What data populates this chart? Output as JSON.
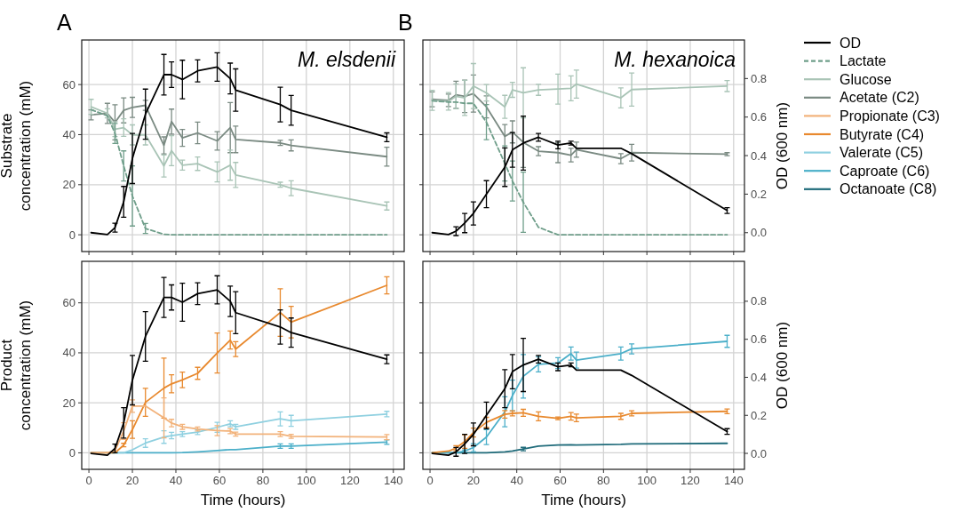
{
  "chart_data": [
    {
      "type": "line",
      "title": "A",
      "annotations": [
        "M. elsdenii"
      ],
      "ylabel": "Substrate concentration (mM)",
      "x": [
        1,
        8.5,
        12,
        16,
        20,
        26,
        34.5,
        38,
        43,
        50,
        59,
        65,
        67.5,
        88,
        93,
        137
      ],
      "xlim": [
        -3.3,
        145
      ],
      "xticks": [
        0,
        20,
        40,
        60,
        80,
        100,
        120,
        140
      ],
      "ylim": [
        -6.7,
        77.8
      ],
      "yticks": [
        0,
        20,
        40,
        60
      ],
      "y2lim": [
        -0.098,
        1.0
      ],
      "grid": true,
      "legend": "right",
      "tick_labels": "y",
      "series": [
        {
          "name": "OD",
          "color": "#000000",
          "axis": "y2",
          "values": [
            0.0,
            -0.01,
            0.026,
            0.16,
            0.385,
            0.615,
            0.82,
            0.82,
            0.795,
            0.84,
            0.86,
            0.8,
            0.74,
            0.665,
            0.635,
            0.495
          ],
          "errors": [
            null,
            null,
            0.023,
            0.08,
            0.13,
            0.13,
            0.105,
            0.066,
            0.1,
            0.057,
            0.074,
            0.08,
            0.11,
            0.09,
            0.077,
            0.023
          ]
        },
        {
          "name": "Lactate",
          "color": "#6f9e8a",
          "line_style": "dashed",
          "values": [
            50,
            47.5,
            40.5,
            27.5,
            15.5,
            2.5,
            0.2,
            0,
            0,
            0,
            0,
            0,
            0,
            0,
            0,
            0
          ],
          "errors": [
            null,
            null,
            4,
            6,
            12,
            2,
            null,
            null,
            null,
            null,
            null,
            null,
            null,
            null,
            null,
            null
          ]
        },
        {
          "name": "Glucose",
          "color": "#a9c4b6",
          "values": [
            51.1,
            48.5,
            42.2,
            42.8,
            39.9,
            39.9,
            27.5,
            33.6,
            27.8,
            28.4,
            25.1,
            27.8,
            23.9,
            20,
            18.6,
            11.5
          ],
          "errors": [
            3,
            1.8,
            3,
            3.5,
            4,
            4,
            4.4,
            6,
            2,
            2.7,
            4,
            6,
            5,
            1,
            3,
            1.6
          ]
        },
        {
          "name": "Acetate (C2)",
          "color": "#7a8a82",
          "values": [
            47.9,
            48.5,
            44.9,
            49.7,
            50.9,
            51.7,
            35.7,
            45.2,
            38.7,
            40.7,
            37.5,
            42.8,
            38.1,
            36.7,
            35.7,
            31.2
          ],
          "errors": [
            2,
            4,
            7,
            5,
            4,
            2,
            3.4,
            5,
            3.4,
            4.3,
            3.7,
            10,
            5.3,
            1,
            2.2,
            3.8
          ]
        }
      ]
    },
    {
      "type": "line",
      "title": "B",
      "annotations": [
        "M. hexanoica"
      ],
      "y2label": "OD (600 nm)",
      "x": [
        1,
        8.5,
        12,
        16,
        20,
        26,
        34.5,
        38,
        43,
        50,
        59,
        65,
        67.5,
        88,
        93,
        137
      ],
      "xlim": [
        -3.3,
        145
      ],
      "ylim": [
        -6.7,
        77.8
      ],
      "y2lim": [
        -0.098,
        1.0
      ],
      "y2ticks": [
        {
          "value": 0,
          "label": "0.0"
        },
        {
          "value": 0.2,
          "label": "0.2"
        },
        {
          "value": 0.4,
          "label": "0.4"
        },
        {
          "value": 0.6,
          "label": "0.6"
        },
        {
          "value": 0.8,
          "label": "0.8"
        }
      ],
      "grid": true,
      "tick_labels": "y2",
      "series": [
        {
          "color": "#000000",
          "axis": "y2",
          "values": [
            0.0,
            -0.01,
            0.008,
            0.05,
            0.1,
            0.2,
            0.34,
            0.43,
            0.465,
            0.495,
            0.455,
            0.465,
            0.438,
            0.438,
            0.41,
            0.115
          ],
          "errors": [
            null,
            null,
            0.023,
            0.05,
            0.06,
            0.07,
            0.1,
            0.09,
            0.14,
            0.02,
            0.02,
            0.01,
            null,
            null,
            null,
            0.015
          ]
        },
        {
          "color": "#6f9e8a",
          "line_style": "dashed",
          "values": [
            53.5,
            53,
            53,
            52.5,
            52.5,
            45,
            28.5,
            21.5,
            13,
            3,
            0,
            0,
            0,
            0,
            0,
            0
          ],
          "errors": [
            null,
            null,
            null,
            null,
            null,
            7,
            7,
            8,
            12,
            null,
            null,
            null,
            null,
            null,
            null,
            null
          ]
        },
        {
          "color": "#a9c4b6",
          "values": [
            53.7,
            53.3,
            55.3,
            54.7,
            59.4,
            56.7,
            51.1,
            57.9,
            56.7,
            57.9,
            58.2,
            58.5,
            60.2,
            54.7,
            58,
            59.4
          ],
          "errors": [
            4,
            3.5,
            5,
            7,
            9,
            3.3,
            4.6,
            3,
            10,
            2.2,
            6,
            5,
            5.6,
            4,
            6.6,
            2.2
          ]
        },
        {
          "color": "#7a8a82",
          "values": [
            54.1,
            53.7,
            55.9,
            55.3,
            56.4,
            51.1,
            39.3,
            41.1,
            36.9,
            33.4,
            32.8,
            31.8,
            34,
            30.4,
            32.8,
            32.2
          ],
          "errors": [
            3,
            2.5,
            5.4,
            6.5,
            7.4,
            4.4,
            4.7,
            4.4,
            10,
            1.8,
            4,
            2.7,
            3,
            2,
            3.3,
            0.6
          ]
        }
      ]
    },
    {
      "type": "line",
      "ylabel": "Product concentration (mM)",
      "xlabel": "Time (hours)",
      "x": [
        1,
        8.5,
        12,
        16,
        20,
        26,
        34.5,
        38,
        43,
        50,
        59,
        65,
        67.5,
        88,
        93,
        137
      ],
      "xlim": [
        -3.3,
        145
      ],
      "xticks": [
        0,
        20,
        40,
        60,
        80,
        100,
        120,
        140
      ],
      "ylim": [
        -6.6,
        76.6
      ],
      "yticks": [
        0,
        20,
        40,
        60
      ],
      "y2lim": [
        -0.084,
        1.01
      ],
      "grid": true,
      "legend": "right",
      "series": [
        {
          "name": "OD",
          "color": "#000000",
          "axis": "y2",
          "values": [
            0.0,
            -0.01,
            0.026,
            0.16,
            0.385,
            0.615,
            0.82,
            0.82,
            0.795,
            0.84,
            0.86,
            0.8,
            0.74,
            0.665,
            0.635,
            0.495
          ],
          "errors": [
            null,
            null,
            0.023,
            0.08,
            0.13,
            0.13,
            0.105,
            0.066,
            0.1,
            0.057,
            0.074,
            0.08,
            0.11,
            0.09,
            0.077,
            0.023
          ]
        },
        {
          "name": "Propionate (C3)",
          "color": "#f2b27a",
          "values": [
            0,
            0,
            0.9,
            8.7,
            18.7,
            18.7,
            14,
            11.9,
            10.4,
            9.5,
            8.9,
            8.7,
            7.5,
            7.5,
            6.6,
            6.3
          ],
          "errors": [
            null,
            null,
            null,
            3.3,
            2.5,
            null,
            8,
            1.5,
            1,
            0.8,
            2,
            1,
            0.8,
            1,
            0.8,
            1
          ]
        },
        {
          "name": "Butyrate (C4)",
          "color": "#e8892e",
          "values": [
            0,
            0,
            0,
            3.1,
            9.3,
            20.2,
            25.9,
            27.6,
            29.2,
            31.8,
            39.9,
            45.1,
            41.5,
            56.1,
            52.3,
            67
          ],
          "errors": [
            null,
            null,
            null,
            0.7,
            3.5,
            5.6,
            12,
            3.6,
            3.1,
            2.4,
            8,
            3.6,
            3,
            9.5,
            6.3,
            3.4
          ]
        },
        {
          "name": "Valerate (C5)",
          "color": "#8fd0e0",
          "values": [
            0,
            0,
            0,
            0,
            1.2,
            3.9,
            6.3,
            6.9,
            7.5,
            8.3,
            10.2,
            11.6,
            10.4,
            13.6,
            12.8,
            15.5
          ],
          "errors": [
            null,
            null,
            null,
            null,
            null,
            1.7,
            2.5,
            1.3,
            1,
            1,
            2,
            1.2,
            1,
            2.8,
            2.2,
            1.1
          ]
        },
        {
          "name": "Caproate (C6)",
          "color": "#4bafc9",
          "values": [
            0,
            0,
            0,
            0,
            0,
            0,
            0,
            0,
            0.1,
            0.4,
            0.9,
            1.3,
            1.3,
            2.7,
            2.7,
            4.3
          ],
          "errors": [
            null,
            null,
            null,
            null,
            null,
            null,
            null,
            null,
            null,
            null,
            null,
            null,
            null,
            0.9,
            0.9,
            0.9
          ]
        }
      ]
    },
    {
      "type": "line",
      "xlabel": "Time (hours)",
      "y2label": "OD (600 nm)",
      "x": [
        1,
        8.5,
        12,
        16,
        20,
        26,
        34.5,
        38,
        43,
        50,
        59,
        65,
        67.5,
        88,
        93,
        137
      ],
      "xlim": [
        -3.3,
        145
      ],
      "xticks": [
        0,
        20,
        40,
        60,
        80,
        100,
        120,
        140
      ],
      "ylim": [
        -6.6,
        76.6
      ],
      "y2lim": [
        -0.084,
        1.01
      ],
      "y2ticks": [
        {
          "value": 0,
          "label": "0.0"
        },
        {
          "value": 0.2,
          "label": "0.2"
        },
        {
          "value": 0.4,
          "label": "0.4"
        },
        {
          "value": 0.6,
          "label": "0.6"
        },
        {
          "value": 0.8,
          "label": "0.8"
        }
      ],
      "grid": true,
      "legend": "right",
      "tick_labels": "x y2",
      "series": [
        {
          "name": "OD",
          "color": "#000000",
          "axis": "y2",
          "values": [
            0.0,
            -0.01,
            0.008,
            0.05,
            0.1,
            0.2,
            0.34,
            0.43,
            0.465,
            0.495,
            0.455,
            0.465,
            0.438,
            0.438,
            0.41,
            0.115
          ],
          "errors": [
            null,
            null,
            0.023,
            0.05,
            0.06,
            0.07,
            0.1,
            0.09,
            0.14,
            0.02,
            0.02,
            0.01,
            null,
            null,
            null,
            0.015
          ]
        },
        {
          "name": "Butyrate (C4)",
          "color": "#e8892e",
          "values": [
            0,
            0.7,
            1.9,
            4.5,
            8.1,
            12.2,
            15.4,
            15.8,
            16,
            14.6,
            13.8,
            14.6,
            14,
            14.6,
            15.8,
            16.6
          ],
          "errors": [
            null,
            null,
            1,
            2.7,
            1.8,
            2,
            1.5,
            1,
            1.4,
            1.8,
            0.5,
            1.5,
            1.5,
            1.2,
            1,
            0.9
          ]
        },
        {
          "name": "Caproate (C6)",
          "color": "#4bafc9",
          "values": [
            0,
            0,
            0,
            0.7,
            2.1,
            6.3,
            16.4,
            22.9,
            30.6,
            35.4,
            35.9,
            39.7,
            37.1,
            39.7,
            41.6,
            44.6
          ],
          "errors": [
            null,
            null,
            null,
            0.5,
            1.6,
            3,
            6,
            6.2,
            8.7,
            3,
            2.2,
            2.6,
            3.2,
            2.6,
            2,
            2.4
          ]
        },
        {
          "name": "Octanoate (C8)",
          "color": "#1f6b7a",
          "values": [
            0,
            0,
            0,
            0,
            0,
            0,
            0.4,
            0.7,
            1.5,
            2.7,
            3.1,
            3.2,
            3.1,
            3.4,
            3.6,
            3.8
          ],
          "errors": [
            null,
            null,
            null,
            null,
            null,
            null,
            null,
            null,
            0.7,
            null,
            null,
            null,
            null,
            null,
            null,
            null
          ]
        }
      ]
    }
  ]
}
